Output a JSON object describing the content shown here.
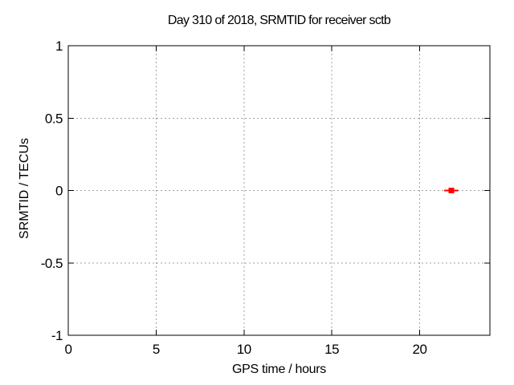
{
  "chart_data": {
    "type": "scatter",
    "title": "Day 310 of 2018, SRMTID for receiver sctb",
    "xlabel": "GPS time / hours",
    "ylabel": "SRMTID / TECUs",
    "xlim": [
      0,
      24
    ],
    "ylim": [
      -1,
      1
    ],
    "xticks": [
      0,
      5,
      10,
      15,
      20
    ],
    "xtick_labels": [
      "0",
      "5",
      "10",
      "15",
      "20"
    ],
    "yticks": [
      -1,
      -0.5,
      0,
      0.5,
      1
    ],
    "ytick_labels": [
      "-1",
      "-0.5",
      "0",
      "0.5",
      "1"
    ],
    "grid": "dashed",
    "legend": "none",
    "series": [
      {
        "name": "SRMTID",
        "marker": "filled-square-with-horizontal-error-bar",
        "color": "#ff0000",
        "points": [
          {
            "x": 21.8,
            "y": 0.0,
            "xerr": 0.4
          }
        ]
      }
    ],
    "colors": {
      "axis": "#000000",
      "grid": "#a0a0a0",
      "text": "#000000",
      "background": "#ffffff"
    }
  }
}
